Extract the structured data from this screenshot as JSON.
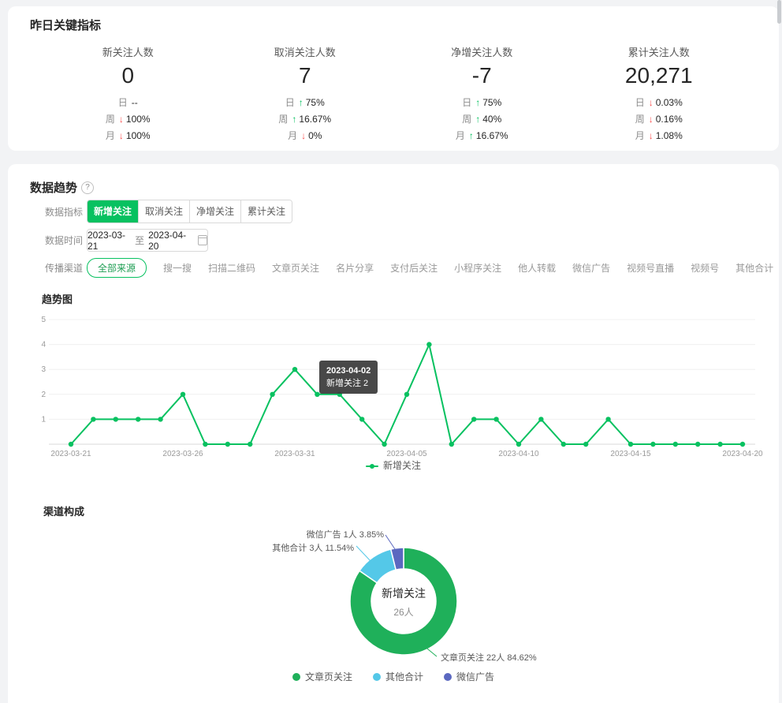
{
  "colors": {
    "green": "#07C160",
    "red": "#FA5151",
    "cyan": "#54C8E8",
    "purple": "#5B68C0"
  },
  "key_metrics": {
    "title": "昨日关键指标",
    "metrics": [
      {
        "label": "新关注人数",
        "value": "0",
        "rows": [
          {
            "period": "日",
            "dir": "none",
            "arrow": "",
            "value": "--"
          },
          {
            "period": "周",
            "dir": "down",
            "arrow": "↓",
            "value": "100%"
          },
          {
            "period": "月",
            "dir": "down",
            "arrow": "↓",
            "value": "100%"
          }
        ]
      },
      {
        "label": "取消关注人数",
        "value": "7",
        "rows": [
          {
            "period": "日",
            "dir": "up",
            "arrow": "↑",
            "value": "75%"
          },
          {
            "period": "周",
            "dir": "up",
            "arrow": "↑",
            "value": "16.67%"
          },
          {
            "period": "月",
            "dir": "down",
            "arrow": "↓",
            "value": "0%"
          }
        ]
      },
      {
        "label": "净增关注人数",
        "value": "-7",
        "rows": [
          {
            "period": "日",
            "dir": "up",
            "arrow": "↑",
            "value": "75%"
          },
          {
            "period": "周",
            "dir": "up",
            "arrow": "↑",
            "value": "40%"
          },
          {
            "period": "月",
            "dir": "up",
            "arrow": "↑",
            "value": "16.67%"
          }
        ]
      },
      {
        "label": "累计关注人数",
        "value": "20,271",
        "rows": [
          {
            "period": "日",
            "dir": "down",
            "arrow": "↓",
            "value": "0.03%"
          },
          {
            "period": "周",
            "dir": "down",
            "arrow": "↓",
            "value": "0.16%"
          },
          {
            "period": "月",
            "dir": "down",
            "arrow": "↓",
            "value": "1.08%"
          }
        ]
      }
    ]
  },
  "trend": {
    "title": "数据趋势",
    "indicator_label": "数据指标",
    "indicators": [
      {
        "label": "新增关注",
        "active": true
      },
      {
        "label": "取消关注",
        "active": false
      },
      {
        "label": "净增关注",
        "active": false
      },
      {
        "label": "累计关注",
        "active": false
      }
    ],
    "time_label": "数据时间",
    "date_start": "2023-03-21",
    "date_separator": "至",
    "date_end": "2023-04-20",
    "channel_label": "传播渠道",
    "channels": [
      {
        "label": "全部来源",
        "active": true
      },
      {
        "label": "搜一搜",
        "active": false
      },
      {
        "label": "扫描二维码",
        "active": false
      },
      {
        "label": "文章页关注",
        "active": false
      },
      {
        "label": "名片分享",
        "active": false
      },
      {
        "label": "支付后关注",
        "active": false
      },
      {
        "label": "小程序关注",
        "active": false
      },
      {
        "label": "他人转载",
        "active": false
      },
      {
        "label": "微信广告",
        "active": false
      },
      {
        "label": "视频号直播",
        "active": false
      },
      {
        "label": "视频号",
        "active": false
      },
      {
        "label": "其他合计",
        "active": false
      }
    ],
    "chart_title": "趋势图",
    "tooltip": {
      "date": "2023-04-02",
      "text": "新增关注 2"
    },
    "legend_label": "新增关注"
  },
  "composition": {
    "title": "渠道构成",
    "center_label": "新增关注",
    "center_value": "26人",
    "callouts": [
      {
        "text": "微信广告 1人 3.85%"
      },
      {
        "text": "其他合计 3人 11.54%"
      },
      {
        "text": "文章页关注 22人 84.62%"
      }
    ],
    "legend": [
      "文章页关注",
      "其他合计",
      "微信广告"
    ]
  },
  "chart_data": [
    {
      "type": "line",
      "title": "趋势图",
      "x": [
        "2023-03-21",
        "2023-03-22",
        "2023-03-23",
        "2023-03-24",
        "2023-03-25",
        "2023-03-26",
        "2023-03-27",
        "2023-03-28",
        "2023-03-29",
        "2023-03-30",
        "2023-03-31",
        "2023-04-01",
        "2023-04-02",
        "2023-04-03",
        "2023-04-04",
        "2023-04-05",
        "2023-04-06",
        "2023-04-07",
        "2023-04-08",
        "2023-04-09",
        "2023-04-10",
        "2023-04-11",
        "2023-04-12",
        "2023-04-13",
        "2023-04-14",
        "2023-04-15",
        "2023-04-16",
        "2023-04-17",
        "2023-04-18",
        "2023-04-19",
        "2023-04-20"
      ],
      "series": [
        {
          "name": "新增关注",
          "color": "#07C160",
          "values": [
            0,
            1,
            1,
            1,
            1,
            2,
            0,
            0,
            0,
            2,
            3,
            2,
            2,
            1,
            0,
            2,
            4,
            0,
            1,
            1,
            0,
            1,
            0,
            0,
            1,
            0,
            0,
            0,
            0,
            0,
            0
          ]
        }
      ],
      "ylim": [
        0,
        5
      ],
      "yticks": [
        1,
        2,
        3,
        4,
        5
      ],
      "x_tick_indices": [
        0,
        5,
        10,
        15,
        20,
        25,
        30
      ],
      "grid": true,
      "legend_position": "bottom",
      "tooltip_point": {
        "x": "2023-04-02",
        "series": "新增关注",
        "value": 2
      }
    },
    {
      "type": "pie",
      "title": "渠道构成",
      "donut": true,
      "labels": [
        "文章页关注",
        "其他合计",
        "微信广告"
      ],
      "values": [
        22,
        3,
        1
      ],
      "counts": [
        "22人",
        "3人",
        "1人"
      ],
      "percents": [
        "84.62%",
        "11.54%",
        "3.85%"
      ],
      "colors": [
        "#1FB05A",
        "#54C8E8",
        "#5B68C0"
      ],
      "center_label": "新增关注",
      "center_value": "26人"
    }
  ]
}
